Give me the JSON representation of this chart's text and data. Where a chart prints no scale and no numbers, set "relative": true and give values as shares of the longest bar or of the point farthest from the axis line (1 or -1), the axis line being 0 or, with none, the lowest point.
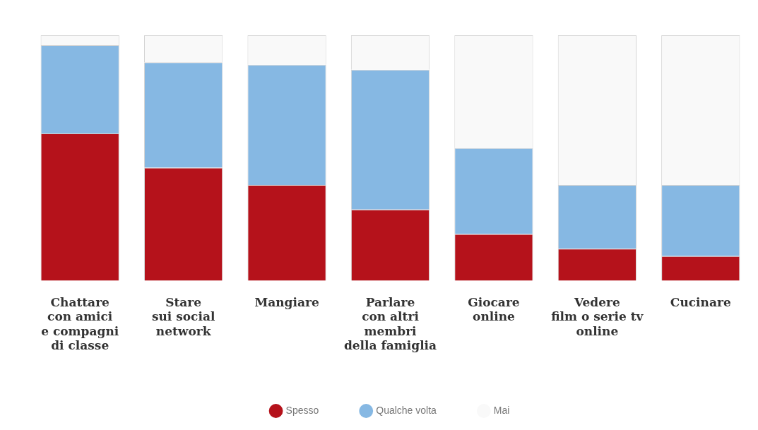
{
  "chart_data": {
    "type": "bar",
    "stacked": true,
    "relative": true,
    "legend": "bottom",
    "grid": false,
    "categories": [
      "Chattare\ncon amici\ne compagni\ndi classe",
      "Stare\nsui social\nnetwork",
      "Mangiare",
      "Parlare\ncon altri\nmembri\ndella famiglia",
      "Giocare\nonline",
      "Vedere\nfilm o serie tv\nonline",
      "Cucinare"
    ],
    "series": [
      {
        "name": "Spesso",
        "color": "#b5121b",
        "values": [
          0.6,
          0.46,
          0.39,
          0.29,
          0.19,
          0.13,
          0.1
        ]
      },
      {
        "name": "Qualche volta",
        "color": "#86b8e3",
        "values": [
          0.36,
          0.43,
          0.49,
          0.57,
          0.35,
          0.26,
          0.29
        ]
      },
      {
        "name": "Mai",
        "color": "#f9f9f9",
        "values": [
          0.04,
          0.11,
          0.12,
          0.14,
          0.46,
          0.61,
          0.61
        ]
      }
    ]
  }
}
